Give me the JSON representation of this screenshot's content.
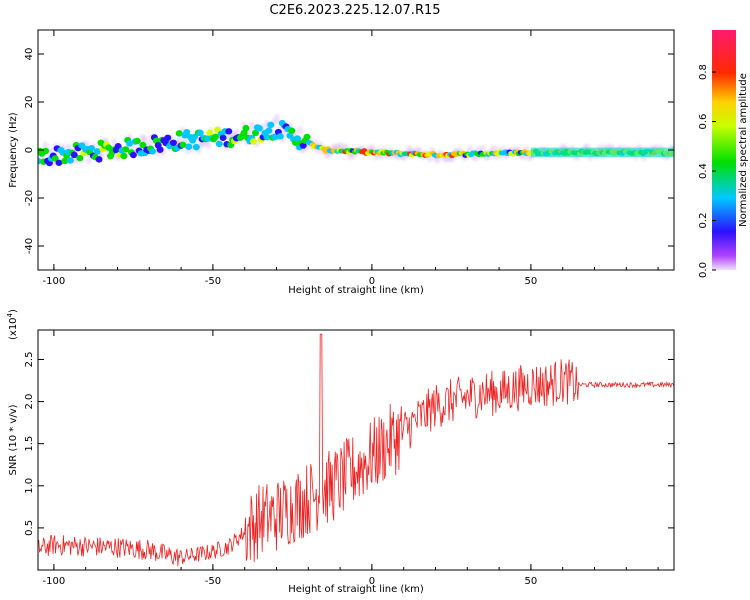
{
  "title": "C2E6.2023.225.12.07.R15",
  "colors": {
    "snr_line": "#ee2222",
    "axes": "#000000"
  },
  "chart_data": [
    {
      "type": "heatmap",
      "xlabel": "Height of straight line (km)",
      "ylabel": "Frequency (Hz)",
      "xlim": [
        -105,
        95
      ],
      "ylim": [
        -50,
        50
      ],
      "xticks": [
        -100,
        -50,
        0,
        50
      ],
      "yticks": [
        -40,
        -20,
        0,
        20,
        40
      ],
      "colorbar": {
        "label": "Normalized spectral amplitude",
        "range": [
          0.0,
          0.97
        ],
        "ticks": [
          0.0,
          0.2,
          0.4,
          0.6,
          0.8
        ],
        "colormap": "rainbow (violet-blue-cyan-green-yellow-red-magenta)"
      },
      "ridge": [
        {
          "x": -105,
          "y": -3
        },
        {
          "x": -90,
          "y": -1
        },
        {
          "x": -75,
          "y": 1
        },
        {
          "x": -60,
          "y": 4
        },
        {
          "x": -50,
          "y": 5
        },
        {
          "x": -40,
          "y": 6
        },
        {
          "x": -30,
          "y": 9
        },
        {
          "x": -22,
          "y": 4
        },
        {
          "x": -15,
          "y": 0
        },
        {
          "x": 0,
          "y": -1
        },
        {
          "x": 20,
          "y": -2
        },
        {
          "x": 50,
          "y": -1
        },
        {
          "x": 95,
          "y": -1
        }
      ]
    },
    {
      "type": "line",
      "xlabel": "Height of straight line (km)",
      "ylabel": "SNR (10 * v/v)",
      "yscale_label": "(x10",
      "yscale_exp": "4",
      "yscale_close": ")",
      "xlim": [
        -105,
        95
      ],
      "ylim": [
        0,
        2.85
      ],
      "xticks": [
        -100,
        -50,
        0,
        50
      ],
      "yticks": [
        0.5,
        1.0,
        1.5,
        2.0,
        2.5
      ],
      "series": [
        {
          "x": [
            -105,
            -100,
            -90,
            -80,
            -70,
            -65,
            -60,
            -55,
            -50,
            -45,
            -40,
            -35,
            -30,
            -25,
            -20,
            -15,
            -10,
            -5,
            0,
            5,
            10,
            15,
            20,
            25,
            30,
            35,
            40,
            45,
            50,
            55,
            60,
            65,
            70,
            80,
            95
          ],
          "y": [
            0.25,
            0.3,
            0.28,
            0.27,
            0.24,
            0.18,
            0.15,
            0.18,
            0.22,
            0.28,
            0.45,
            0.6,
            0.65,
            0.75,
            0.85,
            0.95,
            1.05,
            1.2,
            1.35,
            1.5,
            1.65,
            1.8,
            1.95,
            2.0,
            2.05,
            2.1,
            2.1,
            2.15,
            2.2,
            2.2,
            2.25,
            2.2,
            2.2,
            2.2,
            2.2
          ]
        }
      ]
    }
  ]
}
